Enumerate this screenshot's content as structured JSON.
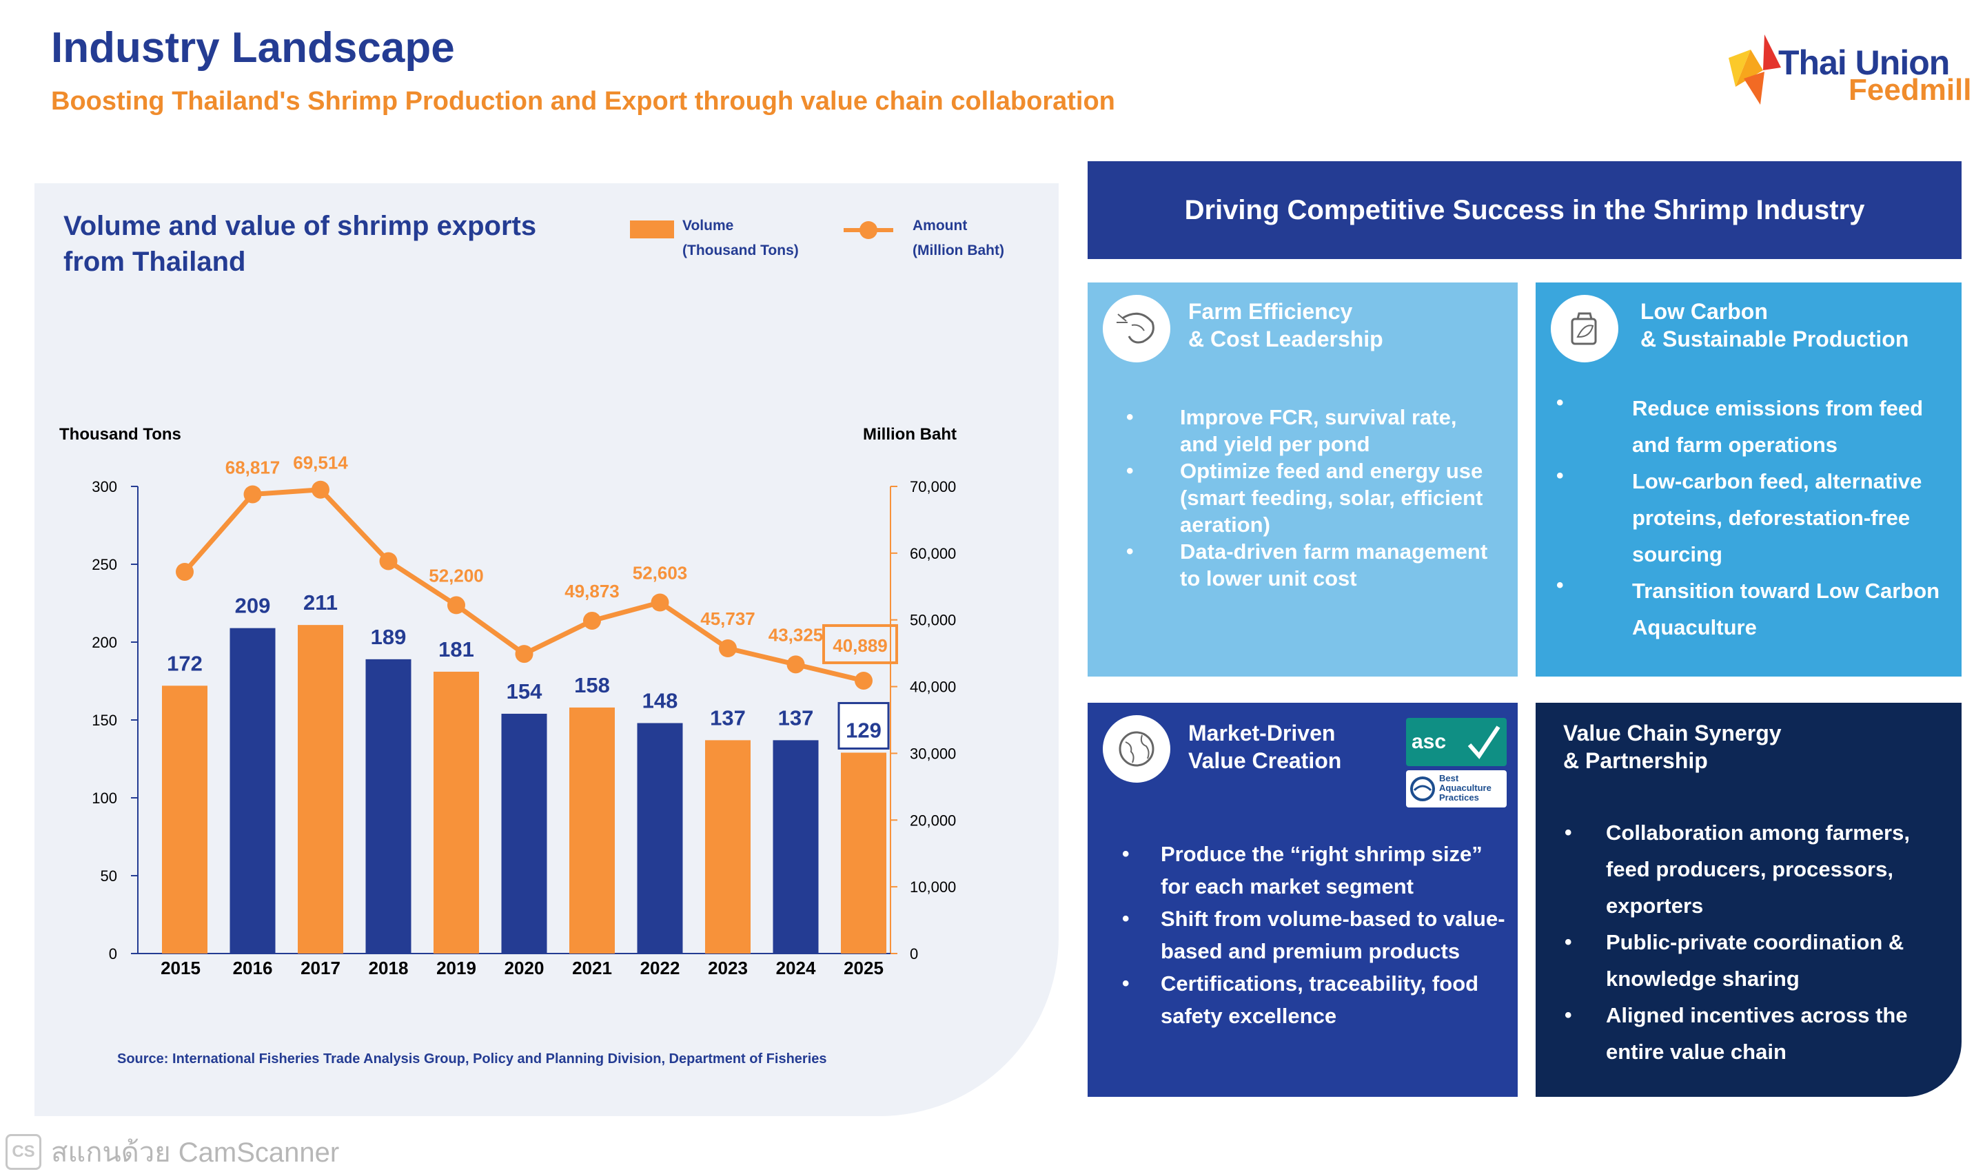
{
  "header": {
    "title": "Industry Landscape",
    "subtitle": "Boosting Thailand's Shrimp Production and Export through value chain collaboration"
  },
  "logo": {
    "line1": "Thai Union",
    "line2": "Feedmill"
  },
  "chart_data": {
    "type": "bar",
    "title": "Volume and value of shrimp exports from Thailand",
    "categories": [
      "2015",
      "2016",
      "2017",
      "2018",
      "2019",
      "2020",
      "2021",
      "2022",
      "2023",
      "2024",
      "2025"
    ],
    "series": [
      {
        "name": "Volume (Thousand Tons)",
        "kind": "bar",
        "axis": "left",
        "values": [
          172,
          209,
          211,
          189,
          181,
          154,
          158,
          148,
          137,
          137,
          129
        ],
        "colors": [
          "#f7923a",
          "#243c93",
          "#f7923a",
          "#243c93",
          "#f7923a",
          "#243c93",
          "#f7923a",
          "#243c93",
          "#f7923a",
          "#243c93",
          "#f7923a"
        ]
      },
      {
        "name": "Amount (Million Baht)",
        "kind": "line",
        "axis": "right",
        "values": [
          57200,
          68817,
          69514,
          58800,
          52200,
          44900,
          49873,
          52603,
          45737,
          43325,
          40889
        ],
        "labels": [
          "",
          "68,817",
          "69,514",
          "",
          "52,200",
          "",
          "49,873",
          "52,603",
          "45,737",
          "43,325",
          "40,889"
        ],
        "color": "#f7923a"
      }
    ],
    "legend": [
      {
        "label_line1": "Volume",
        "label_line2": "(Thousand Tons)"
      },
      {
        "label_line1": "Amount",
        "label_line2": "(Million Baht)"
      }
    ],
    "ylabel_left": "Thousand Tons",
    "ylabel_right": "Million Baht",
    "ylim_left": [
      0,
      300
    ],
    "ylim_right": [
      0,
      70000
    ],
    "yticks_left": [
      "0",
      "50",
      "100",
      "150",
      "200",
      "250",
      "300"
    ],
    "yticks_right": [
      "0",
      "10,000",
      "20,000",
      "30,000",
      "40,000",
      "50,000",
      "60,000",
      "70,000"
    ],
    "highlight": "2025",
    "source": "Source: International Fisheries Trade Analysis Group, Policy and Planning Division, Department of Fisheries",
    "colors": {
      "orange": "#f7923a",
      "blue": "#243c93",
      "bar_label": "#243c93"
    }
  },
  "right": {
    "header": "Driving Competitive Success in the Shrimp Industry",
    "cards": {
      "farm": {
        "icon": "shrimp-icon",
        "title1": "Farm Efficiency",
        "title2": "& Cost Leadership",
        "bullets": [
          "Improve FCR, survival rate, and yield per pond",
          "Optimize feed and energy use (smart feeding, solar, efficient aeration)",
          "Data-driven farm management to lower unit cost"
        ]
      },
      "carbon": {
        "icon": "eco-feed-icon",
        "title1": "Low Carbon",
        "title2": "& Sustainable Production",
        "bullets": [
          "Reduce emissions from feed and farm operations",
          "Low-carbon feed, alternative proteins, deforestation-free sourcing",
          "Transition toward Low Carbon Aquaculture"
        ]
      },
      "market": {
        "icon": "globe-icon",
        "title1": "Market-Driven",
        "title2": "Value Creation",
        "cert1": "asc",
        "cert2_line1": "Best",
        "cert2_line2": "Aquaculture",
        "cert2_line3": "Practices",
        "bullets": [
          "Produce the “right shrimp size” for each market segment",
          "Shift from volume-based to value-based and premium products",
          "Certifications, traceability, food safety excellence"
        ]
      },
      "chain": {
        "title1": "Value Chain Synergy",
        "title2": "& Partnership",
        "bullets": [
          "Collaboration among farmers, feed producers, processors, exporters",
          "Public-private coordination & knowledge sharing",
          "Aligned incentives across the entire value chain"
        ]
      }
    }
  },
  "watermark": {
    "logo": "CS",
    "text": "สแกนด้วย CamScanner"
  }
}
